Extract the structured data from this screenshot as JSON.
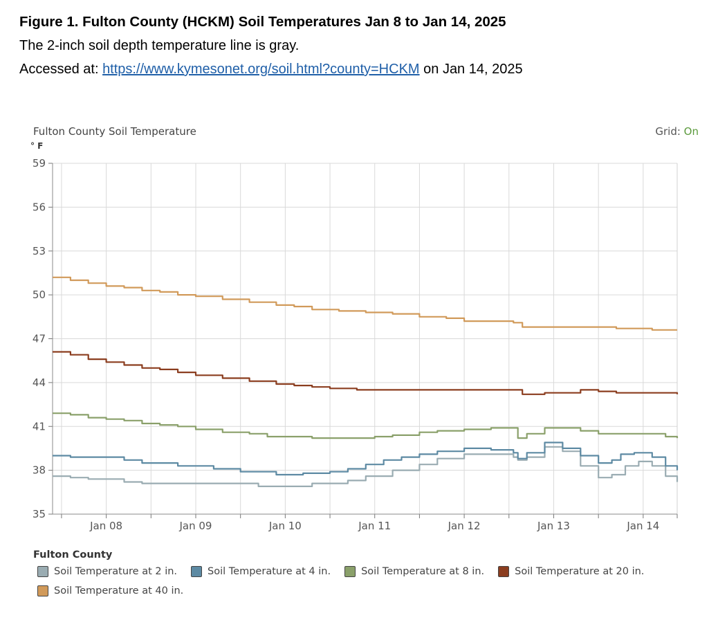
{
  "caption": {
    "title": "Figure 1. Fulton County (HCKM) Soil Temperatures Jan 8 to Jan 14, 2025",
    "line1": "The 2-inch soil depth temperature line is gray.",
    "accessed_prefix": "Accessed at: ",
    "link_text": "https://www.kymesonet.org/soil.html?county=HCKM",
    "accessed_suffix": " on Jan 14, 2025"
  },
  "grid_toggle": {
    "label": "Grid: ",
    "state": "On"
  },
  "chart_data": {
    "type": "line",
    "title": "Fulton County Soil Temperature",
    "ylabel": "° F",
    "xlabel": "",
    "ylim": [
      35,
      59
    ],
    "yticks": [
      35,
      38,
      41,
      44,
      47,
      50,
      53,
      56,
      59
    ],
    "xlim": [
      7.4,
      14.38
    ],
    "xticks": [
      8,
      9,
      10,
      11,
      12,
      13,
      14
    ],
    "xtick_labels": [
      "Jan 08",
      "Jan 09",
      "Jan 10",
      "Jan 11",
      "Jan 12",
      "Jan 13",
      "Jan 14"
    ],
    "grid": true,
    "legend_title": "Fulton County",
    "series": [
      {
        "name": "Soil Temperature at 2 in.",
        "color": "#9aacb2",
        "x": [
          7.4,
          7.6,
          7.8,
          8.2,
          8.4,
          8.8,
          9.3,
          9.7,
          10.0,
          10.3,
          10.7,
          10.9,
          11.2,
          11.5,
          11.7,
          12.0,
          12.3,
          12.55,
          12.6,
          12.7,
          12.9,
          13.1,
          13.3,
          13.5,
          13.65,
          13.8,
          13.95,
          14.1,
          14.25,
          14.38
        ],
        "y": [
          37.6,
          37.5,
          37.4,
          37.2,
          37.1,
          37.1,
          37.1,
          36.9,
          36.9,
          37.1,
          37.3,
          37.6,
          38.0,
          38.4,
          38.8,
          39.1,
          39.1,
          38.9,
          38.7,
          38.9,
          39.6,
          39.3,
          38.3,
          37.5,
          37.7,
          38.3,
          38.6,
          38.3,
          37.6,
          37.2
        ]
      },
      {
        "name": "Soil Temperature at 4 in.",
        "color": "#5d8aa3",
        "x": [
          7.4,
          7.6,
          8.0,
          8.2,
          8.4,
          8.8,
          9.2,
          9.5,
          9.9,
          10.2,
          10.5,
          10.7,
          10.9,
          11.1,
          11.3,
          11.5,
          11.7,
          12.0,
          12.3,
          12.55,
          12.6,
          12.7,
          12.9,
          13.1,
          13.3,
          13.5,
          13.65,
          13.75,
          13.9,
          14.1,
          14.25,
          14.38
        ],
        "y": [
          39.0,
          38.9,
          38.9,
          38.7,
          38.5,
          38.3,
          38.1,
          37.9,
          37.7,
          37.8,
          37.9,
          38.1,
          38.4,
          38.7,
          38.9,
          39.1,
          39.3,
          39.5,
          39.4,
          39.2,
          38.8,
          39.2,
          39.9,
          39.5,
          39.0,
          38.5,
          38.7,
          39.1,
          39.2,
          38.9,
          38.3,
          38.0
        ]
      },
      {
        "name": "Soil Temperature at 8 in.",
        "color": "#8aa06a",
        "x": [
          7.4,
          7.6,
          7.8,
          8.0,
          8.2,
          8.4,
          8.6,
          8.8,
          9.0,
          9.3,
          9.6,
          9.8,
          10.0,
          10.3,
          10.6,
          11.0,
          11.2,
          11.5,
          11.7,
          12.0,
          12.3,
          12.55,
          12.6,
          12.7,
          12.9,
          13.1,
          13.3,
          13.5,
          13.7,
          13.9,
          14.1,
          14.25,
          14.38
        ],
        "y": [
          41.9,
          41.8,
          41.6,
          41.5,
          41.4,
          41.2,
          41.1,
          41.0,
          40.8,
          40.6,
          40.5,
          40.3,
          40.3,
          40.2,
          40.2,
          40.3,
          40.4,
          40.6,
          40.7,
          40.8,
          40.9,
          40.9,
          40.2,
          40.5,
          40.9,
          40.9,
          40.7,
          40.5,
          40.5,
          40.5,
          40.5,
          40.3,
          40.2
        ]
      },
      {
        "name": "Soil Temperature at 20 in.",
        "color": "#8b3d1f",
        "x": [
          7.4,
          7.6,
          7.8,
          8.0,
          8.2,
          8.4,
          8.6,
          8.8,
          9.0,
          9.3,
          9.6,
          9.9,
          10.1,
          10.3,
          10.5,
          10.8,
          11.0,
          11.5,
          12.0,
          12.55,
          12.65,
          12.9,
          13.1,
          13.3,
          13.5,
          13.7,
          13.9,
          14.1,
          14.38
        ],
        "y": [
          46.1,
          45.9,
          45.6,
          45.4,
          45.2,
          45.0,
          44.9,
          44.7,
          44.5,
          44.3,
          44.1,
          43.9,
          43.8,
          43.7,
          43.6,
          43.5,
          43.5,
          43.5,
          43.5,
          43.5,
          43.2,
          43.3,
          43.3,
          43.5,
          43.4,
          43.3,
          43.3,
          43.3,
          43.2
        ]
      },
      {
        "name": "Soil Temperature at 40 in.",
        "color": "#d19a5a",
        "x": [
          7.4,
          7.6,
          7.8,
          8.0,
          8.2,
          8.4,
          8.6,
          8.8,
          9.0,
          9.3,
          9.6,
          9.9,
          10.1,
          10.3,
          10.6,
          10.9,
          11.2,
          11.5,
          11.8,
          12.0,
          12.3,
          12.55,
          12.65,
          12.9,
          13.2,
          13.5,
          13.7,
          13.9,
          14.1,
          14.38
        ],
        "y": [
          51.2,
          51.0,
          50.8,
          50.6,
          50.5,
          50.3,
          50.2,
          50.0,
          49.9,
          49.7,
          49.5,
          49.3,
          49.2,
          49.0,
          48.9,
          48.8,
          48.7,
          48.5,
          48.4,
          48.2,
          48.2,
          48.1,
          47.8,
          47.8,
          47.8,
          47.8,
          47.7,
          47.7,
          47.6,
          47.6
        ]
      }
    ]
  }
}
